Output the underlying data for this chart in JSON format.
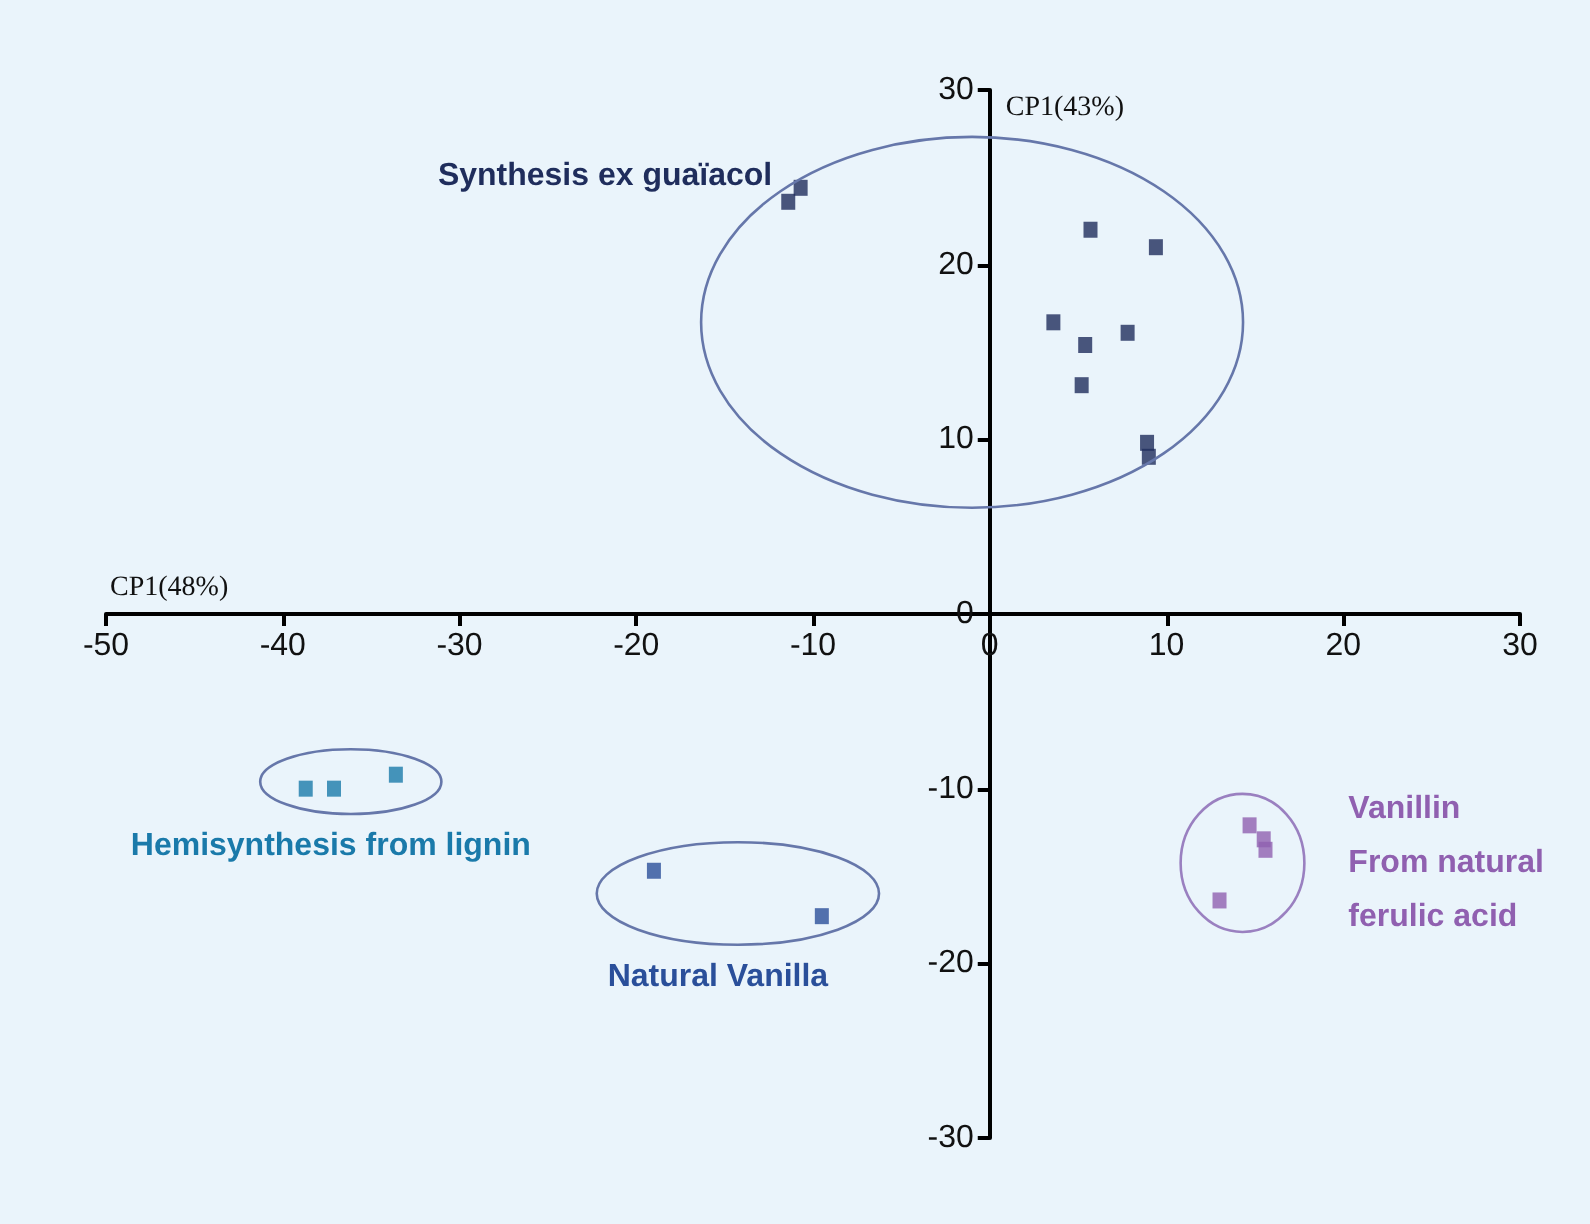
{
  "chart_data": {
    "type": "scatter",
    "xlabel": "CP1(48%)",
    "ylabel": "CP1(43%)",
    "marker": "square",
    "xlim": [
      -50,
      30
    ],
    "ylim": [
      -30,
      30
    ],
    "xticks": [
      -50,
      -40,
      -30,
      -20,
      -10,
      0,
      10,
      20,
      30
    ],
    "yticks": [
      -30,
      -20,
      -10,
      0,
      10,
      20,
      30
    ],
    "series": [
      {
        "name": "Synthesis ex guaïacol",
        "color": "#1f2d5c",
        "x": [
          -11.4,
          -10.7,
          5.7,
          9.4,
          3.6,
          5.4,
          7.8,
          5.2,
          8.9,
          9.0
        ],
        "values": [
          23.6,
          24.4,
          22.0,
          21.0,
          16.7,
          15.4,
          16.1,
          13.1,
          9.8,
          9.0
        ]
      },
      {
        "name": "Hemisynthesis from lignin",
        "color": "#1a7aaa",
        "x": [
          -38.7,
          -37.1,
          -33.6
        ],
        "values": [
          -10.0,
          -10.0,
          -9.2
        ]
      },
      {
        "name": "Natural Vanilla",
        "color": "#2a4f9a",
        "x": [
          -19.0,
          -9.5
        ],
        "values": [
          -14.7,
          -17.3
        ]
      },
      {
        "name": "Vanillin\nFrom natural\nferulic acid",
        "color": "#9060b0",
        "x": [
          14.7,
          15.5,
          15.6,
          13.0
        ],
        "values": [
          -12.1,
          -12.9,
          -13.5,
          -16.4
        ]
      }
    ]
  }
}
